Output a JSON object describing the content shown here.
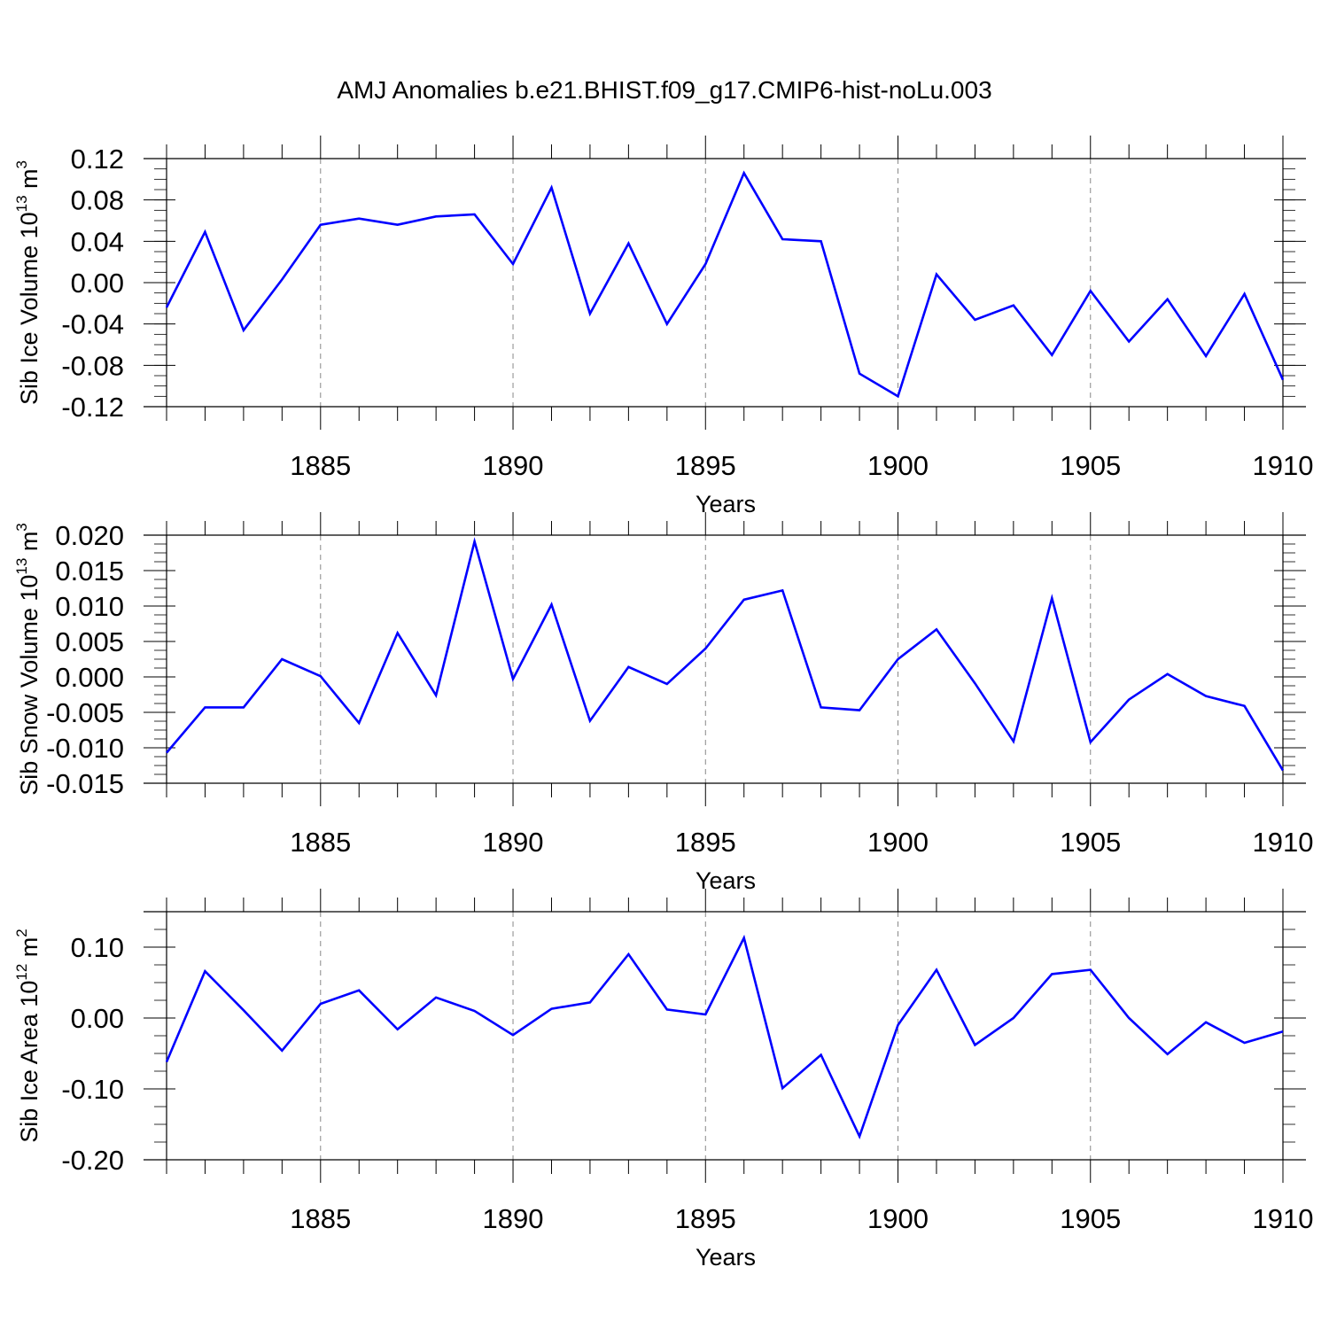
{
  "title": "AMJ Anomalies b.e21.BHIST.f09_g17.CMIP6-hist-noLu.003",
  "colors": {
    "line": "#0000ff",
    "axis": "#000000",
    "grid": "#888888"
  },
  "chart_data": [
    {
      "type": "line",
      "ylabel_main": "Sib Ice Volume 10",
      "ylabel_exp": "13",
      "ylabel_unit": " m",
      "ylabel_unit_exp": "3",
      "xlabel": "Years",
      "xlim": [
        1881,
        1910
      ],
      "ylim": [
        -0.12,
        0.12
      ],
      "ytick_values": [
        -0.12,
        -0.08,
        -0.04,
        0.0,
        0.04,
        0.08,
        0.12
      ],
      "ytick_labels": [
        "-0.12",
        "-0.08",
        "-0.04",
        "0.00",
        "0.04",
        "0.08",
        "0.12"
      ],
      "xtick_values": [
        1885,
        1890,
        1895,
        1900,
        1905,
        1910
      ],
      "xtick_labels": [
        "1885",
        "1890",
        "1895",
        "1900",
        "1905",
        "1910"
      ],
      "x": [
        1881,
        1882,
        1883,
        1884,
        1885,
        1886,
        1887,
        1888,
        1889,
        1890,
        1891,
        1892,
        1893,
        1894,
        1895,
        1896,
        1897,
        1898,
        1899,
        1900,
        1901,
        1902,
        1903,
        1904,
        1905,
        1906,
        1907,
        1908,
        1909,
        1910
      ],
      "values": [
        -0.024,
        0.049,
        -0.046,
        0.003,
        0.056,
        0.062,
        0.056,
        0.064,
        0.066,
        0.018,
        0.092,
        -0.03,
        0.038,
        -0.04,
        0.018,
        0.106,
        0.042,
        0.04,
        -0.088,
        -0.11,
        0.008,
        -0.036,
        -0.022,
        -0.07,
        -0.008,
        -0.057,
        -0.016,
        -0.071,
        -0.011,
        -0.094
      ]
    },
    {
      "type": "line",
      "ylabel_main": "Sib Snow Volume 10",
      "ylabel_exp": "13",
      "ylabel_unit": " m",
      "ylabel_unit_exp": "3",
      "xlabel": "Years",
      "xlim": [
        1881,
        1910
      ],
      "ylim": [
        -0.015,
        0.02
      ],
      "ytick_values": [
        -0.015,
        -0.01,
        -0.005,
        0.0,
        0.005,
        0.01,
        0.015,
        0.02
      ],
      "ytick_labels": [
        "-0.015",
        "-0.010",
        "-0.005",
        "0.000",
        "0.005",
        "0.010",
        "0.015",
        "0.020"
      ],
      "xtick_values": [
        1885,
        1890,
        1895,
        1900,
        1905,
        1910
      ],
      "xtick_labels": [
        "1885",
        "1890",
        "1895",
        "1900",
        "1905",
        "1910"
      ],
      "x": [
        1881,
        1882,
        1883,
        1884,
        1885,
        1886,
        1887,
        1888,
        1889,
        1890,
        1891,
        1892,
        1893,
        1894,
        1895,
        1896,
        1897,
        1898,
        1899,
        1900,
        1901,
        1902,
        1903,
        1904,
        1905,
        1906,
        1907,
        1908,
        1909,
        1910
      ],
      "values": [
        -0.0107,
        -0.0043,
        -0.0043,
        0.0025,
        0.0001,
        -0.0065,
        0.0062,
        -0.0026,
        0.0191,
        -0.0003,
        0.0102,
        -0.0062,
        0.0014,
        -0.001,
        0.004,
        0.0109,
        0.0122,
        -0.0043,
        -0.0047,
        0.0025,
        0.0067,
        -0.0009,
        -0.0091,
        0.0111,
        -0.0092,
        -0.0032,
        0.0004,
        -0.0027,
        -0.0041,
        -0.0132
      ]
    },
    {
      "type": "line",
      "ylabel_main": "Sib Ice Area 10",
      "ylabel_exp": "12",
      "ylabel_unit": " m",
      "ylabel_unit_exp": "2",
      "xlabel": "Years",
      "xlim": [
        1881,
        1910
      ],
      "ylim": [
        -0.2,
        0.15
      ],
      "ytick_values": [
        -0.2,
        -0.1,
        0.0,
        0.1
      ],
      "ytick_labels": [
        "-0.20",
        "-0.10",
        "0.00",
        "0.10"
      ],
      "xtick_values": [
        1885,
        1890,
        1895,
        1900,
        1905,
        1910
      ],
      "xtick_labels": [
        "1885",
        "1890",
        "1895",
        "1900",
        "1905",
        "1910"
      ],
      "x": [
        1881,
        1882,
        1883,
        1884,
        1885,
        1886,
        1887,
        1888,
        1889,
        1890,
        1891,
        1892,
        1893,
        1894,
        1895,
        1896,
        1897,
        1898,
        1899,
        1900,
        1901,
        1902,
        1903,
        1904,
        1905,
        1906,
        1907,
        1908,
        1909,
        1910
      ],
      "values": [
        -0.062,
        0.066,
        0.011,
        -0.046,
        0.02,
        0.039,
        -0.016,
        0.029,
        0.01,
        -0.024,
        0.013,
        0.022,
        0.09,
        0.012,
        0.005,
        0.113,
        -0.099,
        -0.052,
        -0.167,
        -0.01,
        0.068,
        -0.038,
        0.0,
        0.062,
        0.068,
        0.0,
        -0.051,
        -0.006,
        -0.035,
        -0.019
      ]
    }
  ]
}
